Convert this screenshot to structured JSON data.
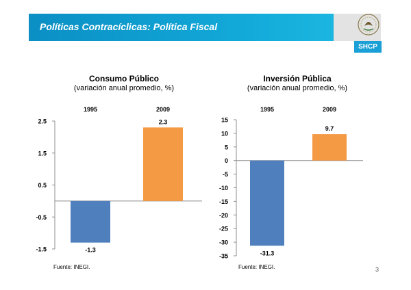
{
  "header": {
    "title": "Políticas Contracíclicas: Política Fiscal",
    "logo_text": "SHCP"
  },
  "page_number": "3",
  "colors": {
    "blue": "#4f7fbd",
    "orange": "#f59a44"
  },
  "chart_data": [
    {
      "type": "bar",
      "title": "Consumo Público",
      "subtitle": "(variación anual promedio, %)",
      "categories": [
        "1995",
        "2009"
      ],
      "values": [
        -1.3,
        2.3
      ],
      "value_labels": [
        "-1.3",
        "2.3"
      ],
      "colors": [
        "#4f7fbd",
        "#f59a44"
      ],
      "ylim": [
        -1.5,
        2.5
      ],
      "yticks": [
        2.5,
        1.5,
        0.5,
        -0.5,
        -1.5
      ],
      "ytick_labels": [
        "2.5",
        "1.5",
        "0.5",
        "-0.5",
        "-1.5"
      ],
      "source": "Fuente: INEGI."
    },
    {
      "type": "bar",
      "title": "Inversión Pública",
      "subtitle": "(variación anual promedio, %)",
      "categories": [
        "1995",
        "2009"
      ],
      "values": [
        -31.3,
        9.7
      ],
      "value_labels": [
        "-31.3",
        "9.7"
      ],
      "colors": [
        "#4f7fbd",
        "#f59a44"
      ],
      "ylim": [
        -35,
        15
      ],
      "yticks": [
        15,
        10,
        5,
        0,
        -5,
        -10,
        -15,
        -20,
        -25,
        -30,
        -35
      ],
      "ytick_labels": [
        "15",
        "10",
        "5",
        "0",
        "-5",
        "-10",
        "-15",
        "-20",
        "-25",
        "-30",
        "-35"
      ],
      "source": "Fuente: INEGI."
    }
  ]
}
